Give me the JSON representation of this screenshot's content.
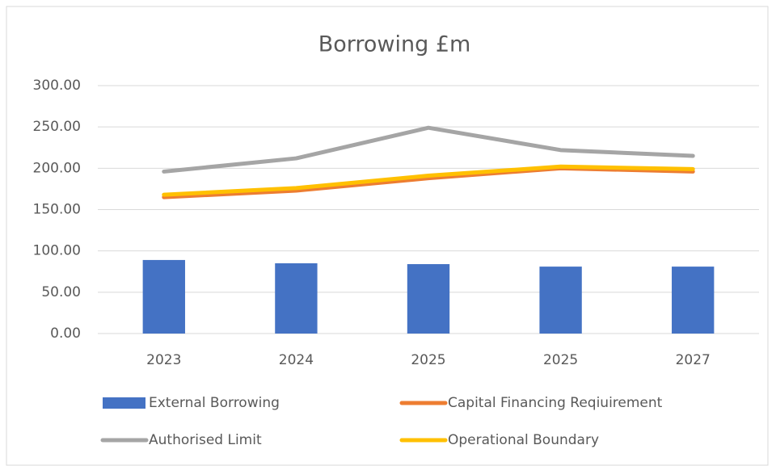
{
  "chart_data": {
    "type": "combo",
    "title": "Borrowing £m",
    "categories": [
      "2023",
      "2024",
      "2025",
      "2025",
      "2027"
    ],
    "series": [
      {
        "name": "External Borrowing",
        "type": "bar",
        "color": "#4472c4",
        "values": [
          89,
          85,
          84,
          81,
          81
        ]
      },
      {
        "name": "Capital Financing Reqiuirement",
        "type": "line",
        "color": "#ed7d31",
        "values": [
          165,
          173,
          188,
          200,
          196
        ]
      },
      {
        "name": "Authorised Limit",
        "type": "line",
        "color": "#a5a5a5",
        "values": [
          196,
          212,
          249,
          222,
          215
        ]
      },
      {
        "name": "Operational Boundary",
        "type": "line",
        "color": "#ffc000",
        "values": [
          168,
          176,
          191,
          202,
          199
        ]
      }
    ],
    "ylim": [
      0,
      300
    ],
    "yticks": [
      {
        "value": 0,
        "label": "0.00"
      },
      {
        "value": 50,
        "label": "50.00"
      },
      {
        "value": 100,
        "label": "100.00"
      },
      {
        "value": 150,
        "label": "150.00"
      },
      {
        "value": 200,
        "label": "200.00"
      },
      {
        "value": 250,
        "label": "250.00"
      },
      {
        "value": 300,
        "label": "300.00"
      }
    ],
    "grid": true,
    "legend": "bottom"
  }
}
